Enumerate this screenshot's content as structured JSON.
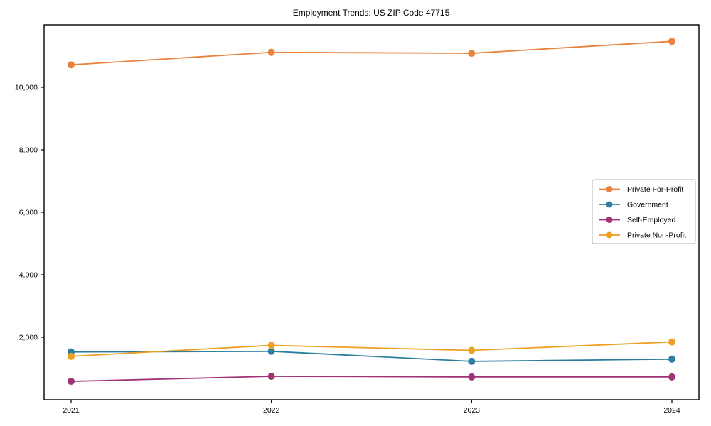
{
  "chart_data": {
    "type": "line",
    "title": "Employment Trends: US ZIP Code 47715",
    "xlabel": "",
    "ylabel": "",
    "categories": [
      "2021",
      "2022",
      "2023",
      "2024"
    ],
    "ylim": [
      0,
      12000
    ],
    "grid": false,
    "legend_position": "center-right",
    "yticks": [
      {
        "value": 2000,
        "label": "2,000"
      },
      {
        "value": 4000,
        "label": "4,000"
      },
      {
        "value": 6000,
        "label": "6,000"
      },
      {
        "value": 8000,
        "label": "8,000"
      },
      {
        "value": 10000,
        "label": "10,000"
      }
    ],
    "series": [
      {
        "name": "Private For-Profit",
        "color": "#E8823C",
        "values": [
          10720,
          11120,
          11090,
          11470
        ]
      },
      {
        "name": "Government",
        "color": "#2E7F9E",
        "values": [
          1530,
          1550,
          1230,
          1300
        ]
      },
      {
        "name": "Self-Employed",
        "color": "#A03376",
        "values": [
          590,
          750,
          730,
          730
        ]
      },
      {
        "name": "Private Non-Profit",
        "color": "#EDA023",
        "values": [
          1390,
          1740,
          1580,
          1850
        ]
      }
    ]
  }
}
